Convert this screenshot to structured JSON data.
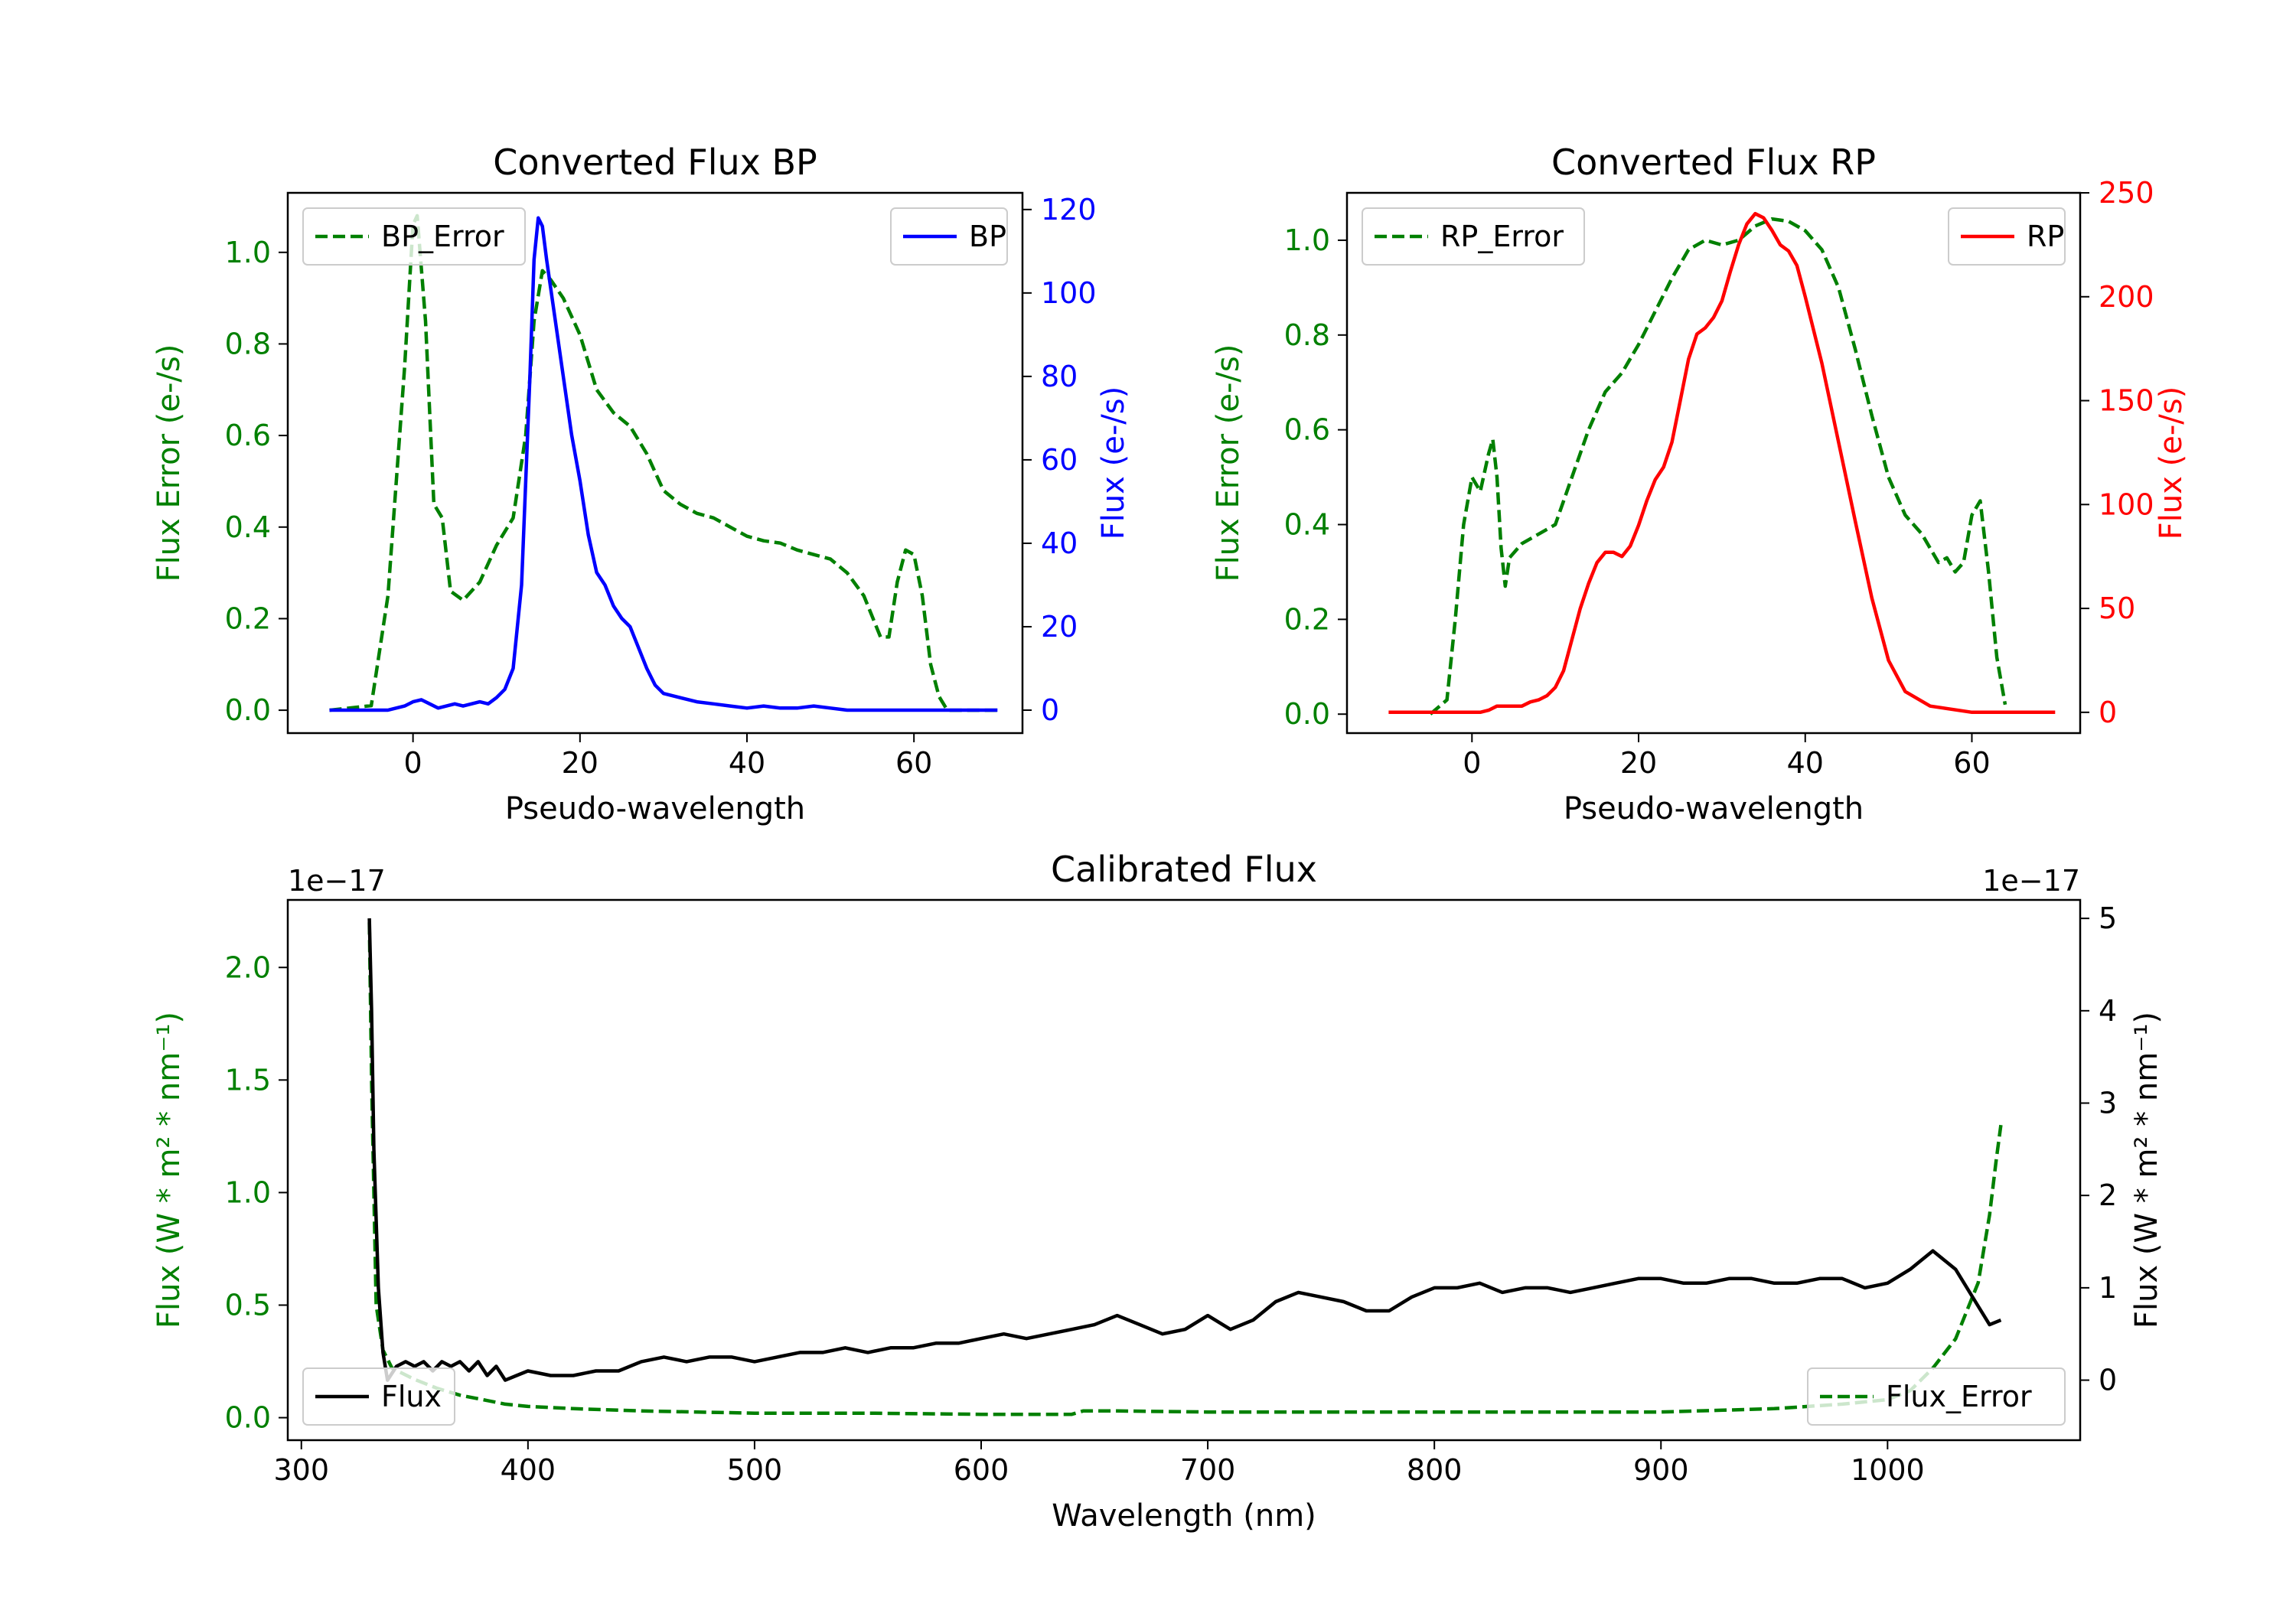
{
  "chart_data": [
    {
      "id": "bp",
      "type": "line",
      "title": "Converted Flux BP",
      "xlabel": "Pseudo-wavelength",
      "ylabel_left": "Flux Error (e-/s)",
      "ylabel_right": "Flux (e-/s)",
      "xlim": [
        -15,
        73
      ],
      "ylim_left": [
        -0.05,
        1.13
      ],
      "ylim_right": [
        -5.5,
        124
      ],
      "xticks": [
        0,
        20,
        40,
        60
      ],
      "yticks_left": [
        "0.0",
        "0.2",
        "0.4",
        "0.6",
        "0.8",
        "1.0"
      ],
      "yticks_right": [
        "0",
        "20",
        "40",
        "60",
        "80",
        "100",
        "120"
      ],
      "left_axis_color": "#008000",
      "right_axis_color": "#0000ff",
      "legend": [
        {
          "label": "BP_Error",
          "position": "upper left",
          "style": "dashed",
          "color": "#008000"
        },
        {
          "label": "BP",
          "position": "upper right",
          "style": "solid",
          "color": "#0000ff"
        }
      ],
      "series": [
        {
          "name": "BP_Error",
          "axis": "left",
          "color": "#008000",
          "style": "dashed",
          "x": [
            -10,
            -5,
            -3,
            -1,
            0,
            0.5,
            1.5,
            2.5,
            3.5,
            4.5,
            6,
            8,
            10,
            12,
            13.5,
            14.5,
            15.5,
            16.5,
            18,
            20,
            22,
            24,
            26,
            28,
            30,
            32,
            34,
            36,
            38,
            40,
            42,
            44,
            46,
            48,
            50,
            52,
            54,
            56,
            57,
            58,
            59,
            60,
            61,
            62,
            63,
            64,
            66,
            68,
            70
          ],
          "y": [
            0.0,
            0.01,
            0.25,
            0.75,
            1.06,
            1.08,
            0.85,
            0.45,
            0.42,
            0.26,
            0.24,
            0.28,
            0.36,
            0.42,
            0.6,
            0.85,
            0.96,
            0.94,
            0.9,
            0.82,
            0.7,
            0.65,
            0.62,
            0.56,
            0.48,
            0.45,
            0.43,
            0.42,
            0.4,
            0.38,
            0.37,
            0.365,
            0.35,
            0.34,
            0.33,
            0.3,
            0.25,
            0.16,
            0.16,
            0.28,
            0.35,
            0.34,
            0.25,
            0.1,
            0.03,
            0.0,
            0.0,
            0.0,
            0.0
          ]
        },
        {
          "name": "BP",
          "axis": "right",
          "color": "#0000ff",
          "style": "solid",
          "x": [
            -10,
            -6,
            -3,
            -1,
            0,
            1,
            2,
            3,
            4,
            5,
            6,
            7,
            8,
            9,
            10,
            11,
            12,
            13,
            14,
            14.5,
            15,
            15.5,
            16,
            17,
            18,
            19,
            20,
            21,
            22,
            23,
            24,
            25,
            26,
            27,
            28,
            29,
            30,
            31,
            32,
            34,
            36,
            38,
            40,
            42,
            44,
            46,
            48,
            50,
            52,
            55,
            58,
            60,
            65,
            70
          ],
          "y": [
            0,
            0,
            0,
            1,
            2,
            2.5,
            1.5,
            0.5,
            1,
            1.5,
            1,
            1.5,
            2,
            1.5,
            3,
            5,
            10,
            30,
            80,
            108,
            118,
            116,
            108,
            94,
            80,
            66,
            55,
            42,
            33,
            30,
            25,
            22,
            20,
            15,
            10,
            6,
            4,
            3.5,
            3,
            2,
            1.5,
            1,
            0.5,
            1,
            0.5,
            0.5,
            1,
            0.5,
            0,
            0,
            0,
            0,
            0,
            0
          ]
        }
      ]
    },
    {
      "id": "rp",
      "type": "line",
      "title": "Converted Flux RP",
      "xlabel": "Pseudo-wavelength",
      "ylabel_left": "Flux Error (e-/s)",
      "ylabel_right": "Flux (e-/s)",
      "xlim": [
        -15,
        73
      ],
      "ylim_left": [
        -0.04,
        1.1
      ],
      "ylim_right": [
        -10,
        250
      ],
      "xticks": [
        0,
        20,
        40,
        60
      ],
      "yticks_left": [
        "0.0",
        "0.2",
        "0.4",
        "0.6",
        "0.8",
        "1.0"
      ],
      "yticks_right": [
        "0",
        "50",
        "100",
        "150",
        "200",
        "250"
      ],
      "left_axis_color": "#008000",
      "right_axis_color": "#ff0000",
      "legend": [
        {
          "label": "RP_Error",
          "position": "upper left",
          "style": "dashed",
          "color": "#008000"
        },
        {
          "label": "RP",
          "position": "upper right",
          "style": "solid",
          "color": "#ff0000"
        }
      ],
      "series": [
        {
          "name": "RP_Error",
          "axis": "left",
          "color": "#008000",
          "style": "dashed",
          "x": [
            -5,
            -3,
            -2,
            -1,
            0,
            1,
            2,
            2.5,
            3,
            3.5,
            4,
            4.5,
            6,
            8,
            10,
            12,
            14,
            16,
            18,
            20,
            22,
            24,
            26,
            28,
            30,
            32,
            34,
            36,
            38,
            40,
            42,
            44,
            46,
            48,
            50,
            52,
            54,
            55,
            56,
            57,
            58,
            59,
            60,
            61,
            62,
            63,
            64
          ],
          "y": [
            0.0,
            0.03,
            0.2,
            0.4,
            0.5,
            0.47,
            0.55,
            0.58,
            0.5,
            0.35,
            0.27,
            0.33,
            0.36,
            0.38,
            0.4,
            0.5,
            0.6,
            0.68,
            0.72,
            0.78,
            0.85,
            0.92,
            0.98,
            1.0,
            0.99,
            1.0,
            1.03,
            1.045,
            1.04,
            1.02,
            0.98,
            0.9,
            0.77,
            0.63,
            0.5,
            0.42,
            0.38,
            0.35,
            0.32,
            0.33,
            0.3,
            0.32,
            0.42,
            0.45,
            0.3,
            0.12,
            0.02
          ]
        },
        {
          "name": "RP",
          "axis": "right",
          "color": "#ff0000",
          "style": "solid",
          "x": [
            -10,
            -2,
            0,
            1,
            2,
            3,
            4,
            5,
            6,
            7,
            8,
            9,
            10,
            11,
            12,
            13,
            14,
            15,
            16,
            17,
            18,
            19,
            20,
            21,
            22,
            23,
            24,
            25,
            26,
            27,
            28,
            29,
            30,
            31,
            32,
            33,
            34,
            35,
            36,
            37,
            38,
            39,
            40,
            42,
            44,
            46,
            48,
            50,
            52,
            55,
            60,
            65,
            70
          ],
          "y": [
            0,
            0,
            0,
            0,
            1,
            3,
            3,
            3,
            3,
            5,
            6,
            8,
            12,
            20,
            35,
            50,
            62,
            72,
            77,
            77,
            75,
            80,
            90,
            102,
            112,
            118,
            130,
            150,
            170,
            182,
            185,
            190,
            198,
            212,
            225,
            235,
            240,
            238,
            232,
            225,
            222,
            215,
            200,
            168,
            130,
            92,
            55,
            25,
            10,
            3,
            0,
            0,
            0
          ]
        }
      ]
    },
    {
      "id": "cal",
      "type": "line",
      "title": "Calibrated Flux",
      "xlabel": "Wavelength (nm)",
      "ylabel_left": "Flux (W * m² * nm⁻¹)",
      "ylabel_right": "Flux (W * m² * nm⁻¹)",
      "offset_left": "1e−17",
      "offset_right": "1e−17",
      "xlim": [
        294,
        1085
      ],
      "ylim_left": [
        -0.1,
        2.3
      ],
      "ylim_right": [
        -0.65,
        5.2
      ],
      "xticks": [
        300,
        400,
        500,
        600,
        700,
        800,
        900,
        1000
      ],
      "yticks_left": [
        "0.0",
        "0.5",
        "1.0",
        "1.5",
        "2.0"
      ],
      "yticks_right": [
        "0",
        "1",
        "2",
        "3",
        "4",
        "5"
      ],
      "left_axis_color": "#008000",
      "right_axis_color": "#000000",
      "legend": [
        {
          "label": "Flux",
          "position": "lower left",
          "style": "solid",
          "color": "#000000"
        },
        {
          "label": "Flux_Error",
          "position": "lower right",
          "style": "dashed",
          "color": "#008000"
        }
      ],
      "series": [
        {
          "name": "Flux_Error",
          "axis": "left",
          "color": "#008000",
          "style": "dashed",
          "x": [
            330,
            331,
            333,
            336,
            340,
            350,
            360,
            370,
            380,
            390,
            400,
            420,
            450,
            500,
            550,
            600,
            640,
            645,
            660,
            700,
            750,
            800,
            850,
            900,
            950,
            980,
            1000,
            1010,
            1020,
            1030,
            1040,
            1045,
            1048,
            1050
          ],
          "y": [
            2.2,
            1.5,
            0.5,
            0.3,
            0.22,
            0.17,
            0.13,
            0.1,
            0.08,
            0.06,
            0.05,
            0.04,
            0.03,
            0.02,
            0.02,
            0.015,
            0.015,
            0.03,
            0.03,
            0.025,
            0.025,
            0.025,
            0.025,
            0.025,
            0.04,
            0.06,
            0.08,
            0.12,
            0.22,
            0.35,
            0.6,
            0.9,
            1.15,
            1.3
          ]
        },
        {
          "name": "Flux",
          "axis": "right",
          "color": "#000000",
          "style": "solid",
          "x": [
            330,
            331,
            332,
            334,
            336,
            338,
            342,
            346,
            350,
            354,
            358,
            362,
            366,
            370,
            374,
            378,
            382,
            386,
            390,
            395,
            400,
            410,
            420,
            430,
            440,
            450,
            460,
            470,
            480,
            490,
            500,
            510,
            520,
            530,
            540,
            550,
            560,
            570,
            580,
            590,
            600,
            610,
            620,
            630,
            640,
            650,
            660,
            670,
            680,
            690,
            700,
            710,
            720,
            730,
            740,
            750,
            760,
            770,
            780,
            790,
            800,
            810,
            820,
            830,
            840,
            850,
            860,
            870,
            880,
            890,
            900,
            910,
            920,
            930,
            940,
            950,
            960,
            970,
            980,
            990,
            1000,
            1010,
            1020,
            1030,
            1040,
            1045,
            1050
          ],
          "y": [
            5.0,
            4.0,
            2.5,
            1.0,
            0.3,
            0.0,
            0.15,
            0.2,
            0.15,
            0.2,
            0.1,
            0.2,
            0.15,
            0.2,
            0.1,
            0.2,
            0.05,
            0.15,
            0.0,
            0.05,
            0.1,
            0.05,
            0.05,
            0.1,
            0.1,
            0.2,
            0.25,
            0.2,
            0.25,
            0.25,
            0.2,
            0.25,
            0.3,
            0.3,
            0.35,
            0.3,
            0.35,
            0.35,
            0.4,
            0.4,
            0.45,
            0.5,
            0.45,
            0.5,
            0.55,
            0.6,
            0.7,
            0.6,
            0.5,
            0.55,
            0.7,
            0.55,
            0.65,
            0.85,
            0.95,
            0.9,
            0.85,
            0.75,
            0.75,
            0.9,
            1.0,
            1.0,
            1.05,
            0.95,
            1.0,
            1.0,
            0.95,
            1.0,
            1.05,
            1.1,
            1.1,
            1.05,
            1.05,
            1.1,
            1.1,
            1.05,
            1.05,
            1.1,
            1.1,
            1.0,
            1.05,
            1.2,
            1.4,
            1.2,
            0.8,
            0.6,
            0.65
          ]
        }
      ]
    }
  ]
}
